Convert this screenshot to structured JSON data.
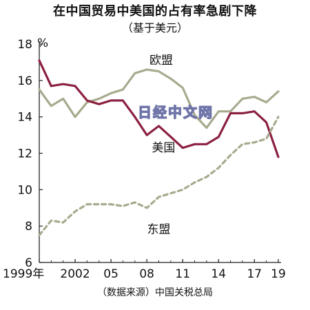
{
  "chart_data": {
    "type": "line",
    "title": "在中国贸易中美国的占有率急剧下降",
    "subtitle": "（基于美元）",
    "source": "（数据来源）中国关税总局",
    "y_unit": "%",
    "ylim": [
      6,
      18
    ],
    "y_ticks": [
      "6",
      "8",
      "10",
      "12",
      "14",
      "16",
      "18"
    ],
    "x_ticks": [
      {
        "x": 1999,
        "label": "1999年"
      },
      {
        "x": 2002,
        "label": "2002"
      },
      {
        "x": 2005,
        "label": "05"
      },
      {
        "x": 2008,
        "label": "08"
      },
      {
        "x": 2011,
        "label": "11"
      },
      {
        "x": 2014,
        "label": "14"
      },
      {
        "x": 2017,
        "label": "17"
      },
      {
        "x": 2019,
        "label": "19"
      }
    ],
    "xlim": [
      1999,
      2019
    ],
    "grid": false,
    "watermark": "日经中文网",
    "series": [
      {
        "name": "欧盟",
        "color": "#a8aa8e",
        "dash": false,
        "x": [
          1999,
          2000,
          2001,
          2002,
          2003,
          2004,
          2005,
          2006,
          2007,
          2008,
          2009,
          2010,
          2011,
          2012,
          2013,
          2014,
          2015,
          2016,
          2017,
          2018,
          2019
        ],
        "values": [
          15.5,
          14.6,
          15.0,
          14.0,
          14.8,
          15.0,
          15.3,
          15.5,
          16.4,
          16.6,
          16.5,
          16.1,
          15.6,
          14.1,
          13.4,
          14.3,
          14.3,
          15.0,
          15.1,
          14.8,
          15.4
        ]
      },
      {
        "name": "美国",
        "color": "#8b2040",
        "dash": false,
        "x": [
          1999,
          2000,
          2001,
          2002,
          2003,
          2004,
          2005,
          2006,
          2007,
          2008,
          2009,
          2010,
          2011,
          2012,
          2013,
          2014,
          2015,
          2016,
          2017,
          2018,
          2019
        ],
        "values": [
          17.1,
          15.7,
          15.8,
          15.7,
          14.9,
          14.7,
          14.9,
          14.9,
          14.0,
          13.0,
          13.5,
          12.9,
          12.3,
          12.5,
          12.5,
          12.9,
          14.2,
          14.2,
          14.3,
          13.7,
          11.8
        ]
      },
      {
        "name": "东盟",
        "color": "#a8aa8e",
        "dash": true,
        "x": [
          1999,
          2000,
          2001,
          2002,
          2003,
          2004,
          2005,
          2006,
          2007,
          2008,
          2009,
          2010,
          2011,
          2012,
          2013,
          2014,
          2015,
          2016,
          2017,
          2018,
          2019
        ],
        "values": [
          7.5,
          8.3,
          8.2,
          8.8,
          9.2,
          9.2,
          9.2,
          9.1,
          9.3,
          9.0,
          9.6,
          9.8,
          10.0,
          10.4,
          10.7,
          11.2,
          11.9,
          12.5,
          12.6,
          12.8,
          14.0
        ]
      }
    ],
    "series_label_positions": {
      "欧盟": [
        2009.2,
        16.9
      ],
      "美国": [
        2009.4,
        12.1
      ],
      "东盟": [
        2009.0,
        7.6
      ]
    }
  }
}
